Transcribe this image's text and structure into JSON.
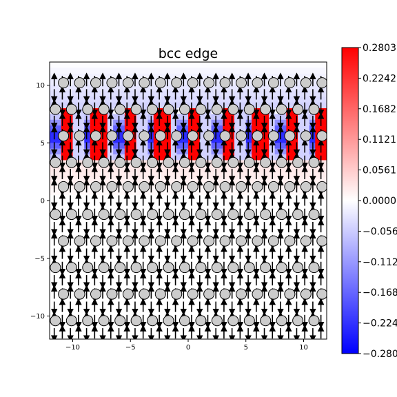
{
  "chart_data": {
    "type": "heatmap",
    "title": "bcc edge",
    "xlabel": "",
    "ylabel": "",
    "xlim": [
      -12,
      12
    ],
    "ylim": [
      -12,
      12
    ],
    "xticks": [
      -10,
      -5,
      0,
      5,
      10
    ],
    "yticks": [
      -10,
      -5,
      0,
      5,
      10
    ],
    "grid": false,
    "colorbar": {
      "vmin": -0.2803,
      "vmax": 0.2803,
      "colormap": "bwr",
      "ticks": [
        0.2803,
        0.2242,
        0.1682,
        0.1121,
        0.0561,
        0.0,
        -0.0561,
        -0.1121,
        -0.1682,
        -0.2242,
        -0.2803
      ],
      "tick_labels": [
        "0.2803",
        "0.2242",
        "0.1682",
        "0.1121",
        "0.0561",
        "0.0000",
        "−0.056",
        "−0.112",
        "−0.168",
        "−0.224",
        "−0.280"
      ]
    },
    "atoms": {
      "color": "#cccccc",
      "rows_y": [
        10.2,
        7.9,
        5.6,
        3.3,
        1.2,
        -1.2,
        -3.5,
        -5.8,
        -8.1,
        -10.4
      ],
      "columns_x": [
        -11.5,
        -10.1,
        -8.7,
        -7.3,
        -5.9,
        -4.5,
        -3.1,
        -1.7,
        -0.3,
        1.1,
        2.5,
        3.9,
        5.3,
        6.7,
        8.1,
        9.5,
        10.9
      ]
    },
    "field_colors": {
      "positive": "#ff0000",
      "zero": "#ffffff",
      "negative": "#0000ff"
    }
  }
}
